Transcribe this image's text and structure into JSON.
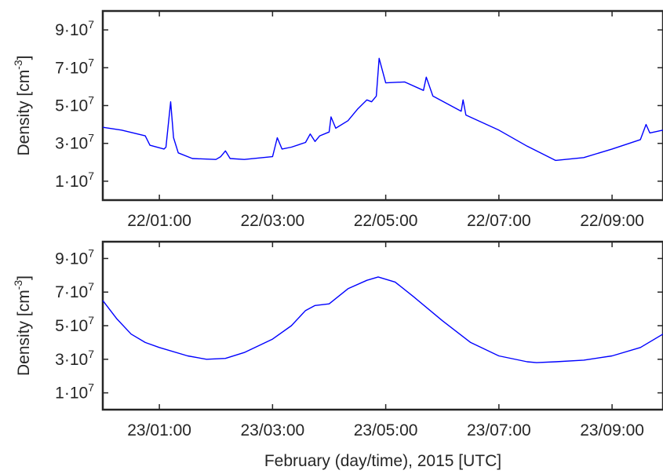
{
  "chart_data": [
    {
      "type": "line",
      "ylabel": "Density [cm",
      "ylabel_exp": "-3",
      "ylabel_close": "]",
      "ylim": [
        0,
        100000000.0
      ],
      "yticks": [
        10000000,
        30000000,
        50000000,
        70000000,
        90000000
      ],
      "ytick_labels": [
        {
          "mant": "1·10",
          "exp": "7"
        },
        {
          "mant": "3·10",
          "exp": "7"
        },
        {
          "mant": "5·10",
          "exp": "7"
        },
        {
          "mant": "7·10",
          "exp": "7"
        },
        {
          "mant": "9·10",
          "exp": "7"
        }
      ],
      "xlim": [
        "22/00:00",
        "22/09:54"
      ],
      "xticks": [
        "22/01:00",
        "22/03:00",
        "22/05:00",
        "22/07:00",
        "22/09:00"
      ],
      "grid": false,
      "line_color": "#0000ff",
      "series": [
        {
          "x": [
            "22/00:00",
            "22/00:20",
            "22/00:45",
            "22/00:50",
            "22/01:05",
            "22/01:07",
            "22/01:12",
            "22/01:15",
            "22/01:20",
            "22/01:35",
            "22/02:00",
            "22/02:05",
            "22/02:10",
            "22/02:15",
            "22/02:30",
            "22/03:00",
            "22/03:05",
            "22/03:10",
            "22/03:20",
            "22/03:35",
            "22/03:40",
            "22/03:45",
            "22/03:50",
            "22/04:00",
            "22/04:02",
            "22/04:07",
            "22/04:20",
            "22/04:30",
            "22/04:40",
            "22/04:45",
            "22/04:50",
            "22/04:53",
            "22/05:00",
            "22/05:20",
            "22/05:40",
            "22/05:43",
            "22/05:50",
            "22/06:20",
            "22/06:22",
            "22/06:25",
            "22/07:00",
            "22/07:30",
            "22/08:00",
            "22/08:30",
            "22/09:00",
            "22/09:30",
            "22/09:36",
            "22/09:40",
            "22/09:54"
          ],
          "y": [
            38500000,
            37000000,
            34000000,
            29000000,
            27000000,
            28000000,
            52000000,
            33000000,
            25000000,
            22000000,
            21500000,
            23000000,
            26000000,
            22000000,
            21500000,
            23000000,
            33000000,
            27000000,
            28000000,
            30500000,
            35000000,
            31000000,
            34000000,
            36000000,
            44000000,
            38000000,
            42000000,
            48000000,
            53000000,
            52000000,
            55000000,
            75000000,
            62000000,
            62500000,
            58000000,
            65000000,
            55000000,
            47000000,
            53000000,
            45000000,
            37000000,
            28500000,
            21000000,
            22500000,
            27000000,
            32000000,
            40000000,
            35500000,
            37000000
          ]
        }
      ]
    },
    {
      "type": "line",
      "ylabel": "Density [cm",
      "ylabel_exp": "-3",
      "ylabel_close": "]",
      "ylim": [
        0,
        100000000.0
      ],
      "yticks": [
        10000000,
        30000000,
        50000000,
        70000000,
        90000000
      ],
      "ytick_labels": [
        {
          "mant": "1·10",
          "exp": "7"
        },
        {
          "mant": "3·10",
          "exp": "7"
        },
        {
          "mant": "5·10",
          "exp": "7"
        },
        {
          "mant": "7·10",
          "exp": "7"
        },
        {
          "mant": "9·10",
          "exp": "7"
        }
      ],
      "xlim": [
        "23/00:00",
        "23/09:54"
      ],
      "xticks": [
        "23/01:00",
        "23/03:00",
        "23/05:00",
        "23/07:00",
        "23/09:00"
      ],
      "xlabel": "February (day/time), 2015 [UTC]",
      "grid": false,
      "line_color": "#0000ff",
      "series": [
        {
          "x": [
            "23/00:00",
            "23/00:15",
            "23/00:30",
            "23/00:45",
            "23/01:00",
            "23/01:30",
            "23/01:50",
            "23/02:10",
            "23/02:30",
            "23/03:00",
            "23/03:20",
            "23/03:35",
            "23/03:45",
            "23/04:00",
            "23/04:20",
            "23/04:40",
            "23/04:52",
            "23/05:10",
            "23/05:30",
            "23/06:00",
            "23/06:30",
            "23/07:00",
            "23/07:30",
            "23/07:40",
            "23/08:00",
            "23/08:30",
            "23/09:00",
            "23/09:30",
            "23/09:54"
          ],
          "y": [
            65000000,
            54000000,
            45000000,
            40000000,
            37000000,
            32000000,
            30000000,
            30500000,
            34000000,
            42000000,
            50000000,
            59000000,
            62000000,
            63000000,
            72000000,
            77000000,
            79000000,
            76000000,
            67000000,
            53000000,
            40000000,
            32000000,
            28500000,
            28000000,
            28500000,
            29500000,
            32000000,
            37000000,
            45000000
          ]
        }
      ]
    }
  ]
}
